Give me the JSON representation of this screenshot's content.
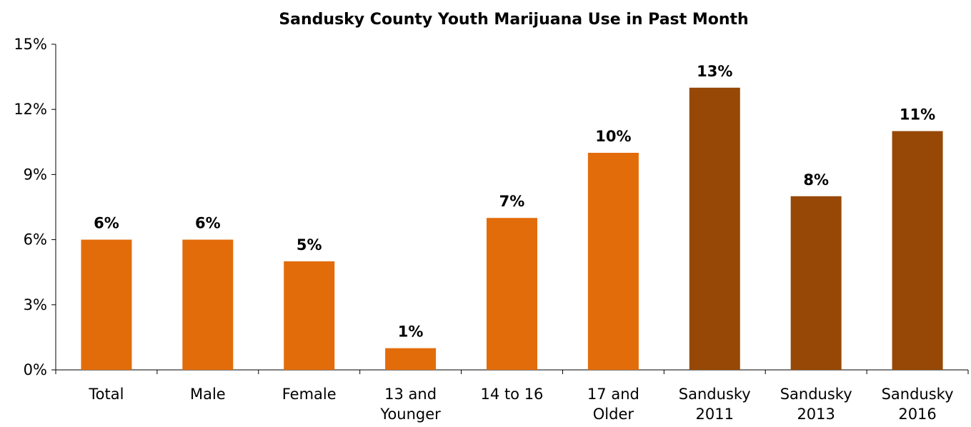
{
  "chart_data": {
    "type": "bar",
    "title": "Sandusky County Youth Marijuana Use in Past Month",
    "xlabel": "",
    "ylabel": "",
    "categories": [
      [
        "Total"
      ],
      [
        "Male"
      ],
      [
        "Female"
      ],
      [
        "13 and",
        "Younger"
      ],
      [
        "14 to 16"
      ],
      [
        "17 and",
        "Older"
      ],
      [
        "Sandusky",
        "2011"
      ],
      [
        "Sandusky",
        "2013"
      ],
      [
        "Sandusky",
        "2016"
      ]
    ],
    "values": [
      6,
      6,
      5,
      1,
      7,
      10,
      13,
      8,
      11
    ],
    "data_labels": [
      "6%",
      "6%",
      "5%",
      "1%",
      "7%",
      "10%",
      "13%",
      "8%",
      "11%"
    ],
    "bar_colors": [
      "#e36c0a",
      "#e36c0a",
      "#e36c0a",
      "#e36c0a",
      "#e36c0a",
      "#e36c0a",
      "#974806",
      "#974806",
      "#974806"
    ],
    "ylim": [
      0,
      15
    ],
    "y_ticks": [
      0,
      3,
      6,
      9,
      12,
      15
    ],
    "y_tick_labels": [
      "0%",
      "3%",
      "6%",
      "9%",
      "12%",
      "15%"
    ],
    "grid": false,
    "legend": "none"
  }
}
